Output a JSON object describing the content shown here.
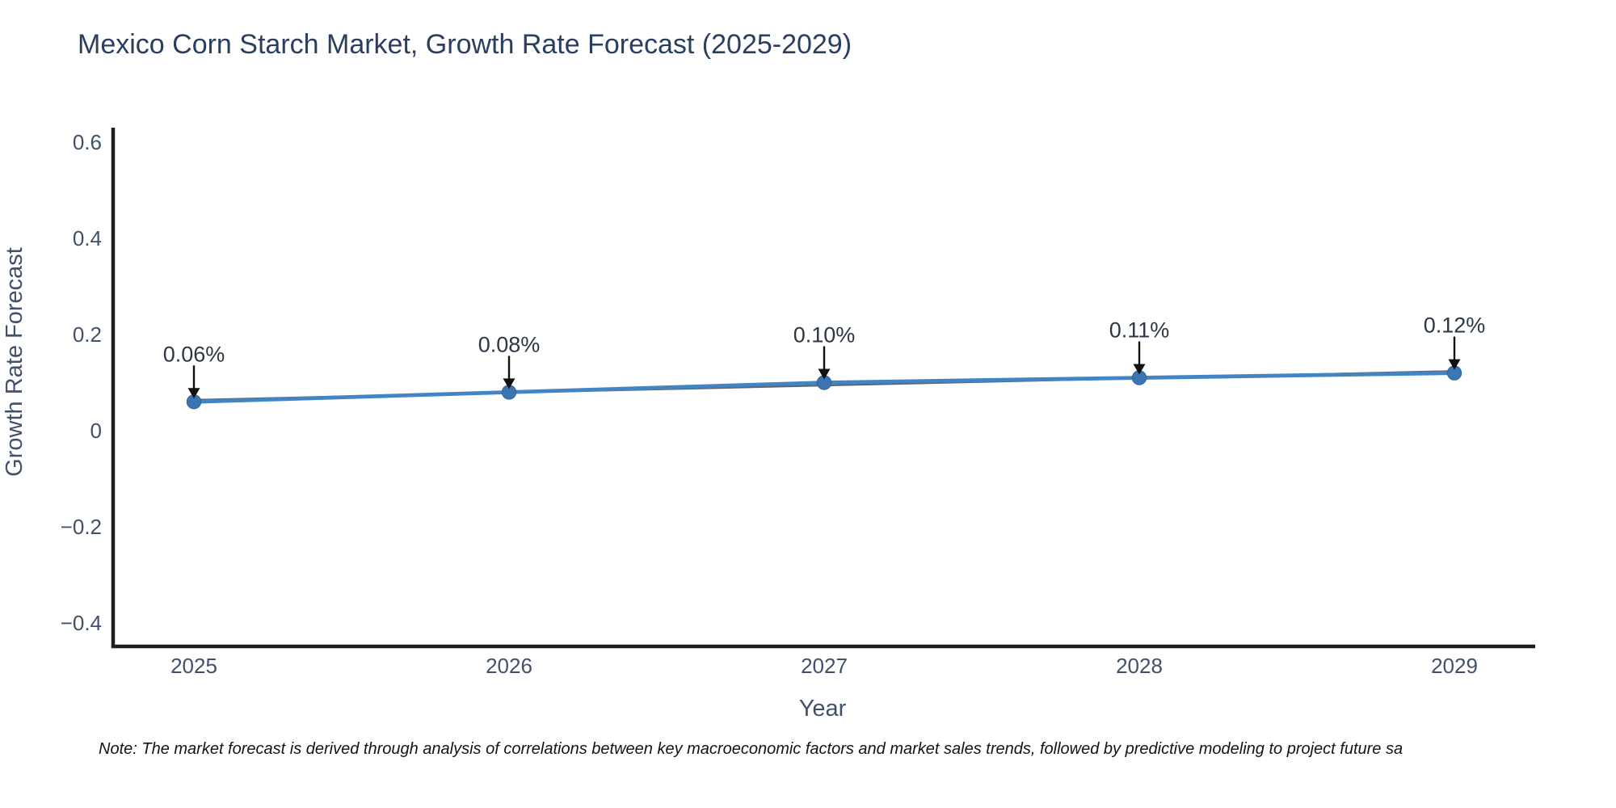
{
  "chart_data": {
    "type": "line",
    "title": "Mexico Corn Starch Market, Growth Rate Forecast (2025-2029)",
    "xlabel": "Year",
    "ylabel": "Growth Rate Forecast",
    "categories": [
      "2025",
      "2026",
      "2027",
      "2028",
      "2029"
    ],
    "series": [
      {
        "name": "Growth Rate Forecast",
        "values": [
          0.06,
          0.08,
          0.1,
          0.11,
          0.12
        ],
        "point_labels": [
          "0.06%",
          "0.08%",
          "0.10%",
          "0.11%",
          "0.12%"
        ]
      }
    ],
    "yticks": [
      0.6,
      0.4,
      0.2,
      0,
      -0.2,
      -0.4
    ],
    "ytick_labels": [
      "0.6",
      "0.4",
      "0.2",
      "0",
      "−0.2",
      "−0.4"
    ],
    "ylim": [
      -0.45,
      0.63
    ],
    "grid": false,
    "legend_position": "none",
    "has_trendline": true,
    "annotations_have_arrows": true,
    "colors": {
      "line": "#4284c4",
      "marker": "#3a76b2",
      "marker_edge": "#2f639a",
      "trend": "#5d646c",
      "axis_spine": "#1d1f21",
      "title_text": "#2a3f5f",
      "tick_text": "#42506a",
      "axis_label_text": "#42516b",
      "annotation_text": "#2c3645",
      "arrow": "#111111",
      "background": "#ffffff"
    }
  },
  "note": {
    "text": "Note: The market forecast is derived through analysis of correlations between key macroeconomic factors and market sales trends, followed by predictive modeling to project future sa"
  }
}
